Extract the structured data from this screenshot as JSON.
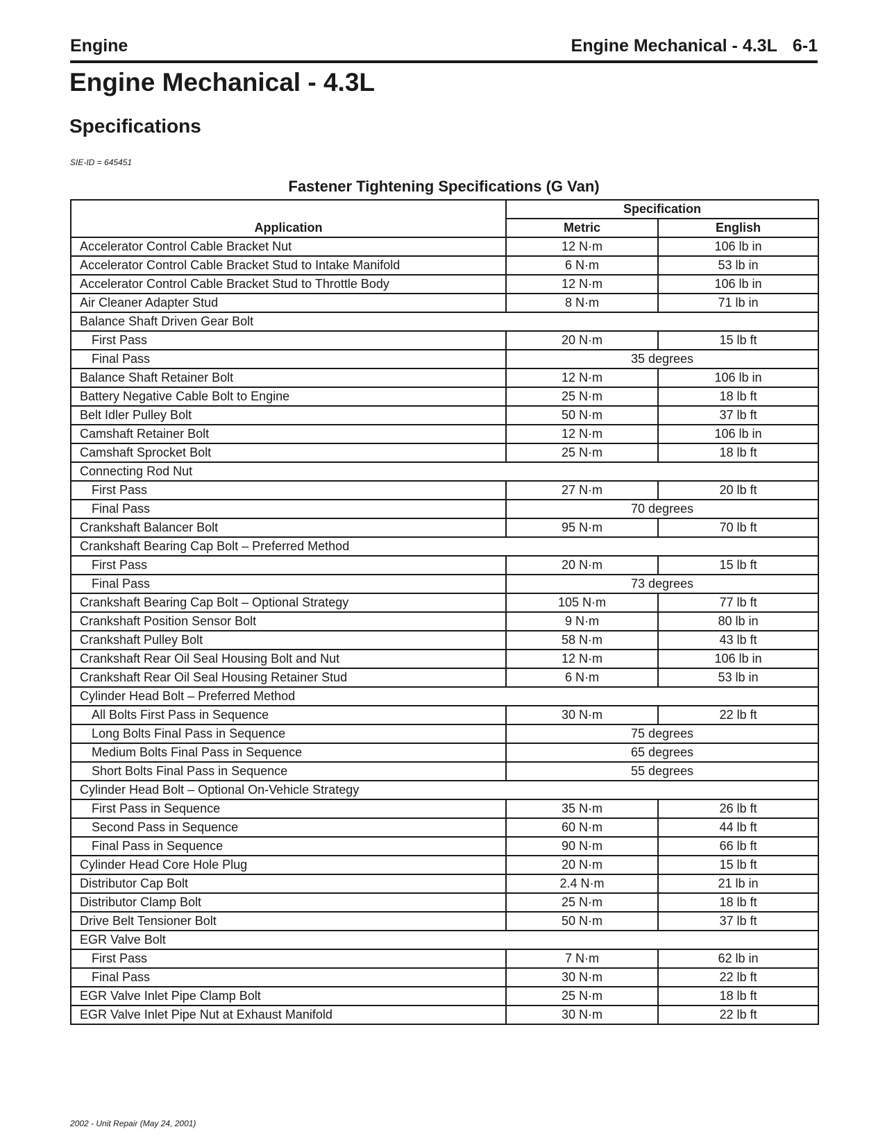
{
  "header": {
    "section": "Engine",
    "chapter": "Engine Mechanical - 4.3L",
    "page_number": "6-1"
  },
  "title": "Engine Mechanical - 4.3L",
  "subtitle": "Specifications",
  "sie_id": "SIE-ID = 645451",
  "table": {
    "caption": "Fastener Tightening Specifications (G Van)",
    "columns": {
      "application": "Application",
      "specification": "Specification",
      "metric": "Metric",
      "english": "English"
    },
    "rows": [
      {
        "application": "Accelerator Control Cable Bracket Nut",
        "metric": "12 N·m",
        "english": "106 lb in"
      },
      {
        "application": "Accelerator Control Cable Bracket Stud to Intake Manifold",
        "metric": "6 N·m",
        "english": "53 lb in"
      },
      {
        "application": "Accelerator Control Cable Bracket Stud to Throttle Body",
        "metric": "12 N·m",
        "english": "106 lb in"
      },
      {
        "application": "Air Cleaner Adapter Stud",
        "metric": "8 N·m",
        "english": "71 lb in"
      },
      {
        "application": "Balance Shaft Driven Gear Bolt",
        "group": true
      },
      {
        "application": "First Pass",
        "sub": true,
        "metric": "20 N·m",
        "english": "15 lb ft"
      },
      {
        "application": "Final Pass",
        "sub": true,
        "combined": "35 degrees"
      },
      {
        "application": "Balance Shaft Retainer Bolt",
        "metric": "12 N·m",
        "english": "106 lb in"
      },
      {
        "application": "Battery Negative Cable Bolt to Engine",
        "metric": "25 N·m",
        "english": "18 lb ft"
      },
      {
        "application": "Belt Idler Pulley Bolt",
        "metric": "50 N·m",
        "english": "37 lb ft"
      },
      {
        "application": "Camshaft Retainer Bolt",
        "metric": "12 N·m",
        "english": "106 lb in"
      },
      {
        "application": "Camshaft Sprocket Bolt",
        "metric": "25 N·m",
        "english": "18 lb ft"
      },
      {
        "application": "Connecting Rod Nut",
        "group": true
      },
      {
        "application": "First Pass",
        "sub": true,
        "metric": "27 N·m",
        "english": "20 lb ft"
      },
      {
        "application": "Final Pass",
        "sub": true,
        "combined": "70 degrees"
      },
      {
        "application": "Crankshaft Balancer Bolt",
        "metric": "95 N·m",
        "english": "70 lb ft"
      },
      {
        "application": "Crankshaft Bearing Cap Bolt – Preferred Method",
        "group": true
      },
      {
        "application": "First Pass",
        "sub": true,
        "metric": "20 N·m",
        "english": "15 lb ft"
      },
      {
        "application": "Final Pass",
        "sub": true,
        "combined": "73 degrees"
      },
      {
        "application": "Crankshaft Bearing Cap Bolt – Optional Strategy",
        "metric": "105 N·m",
        "english": "77 lb ft"
      },
      {
        "application": "Crankshaft Position Sensor Bolt",
        "metric": "9 N·m",
        "english": "80 lb in"
      },
      {
        "application": "Crankshaft Pulley Bolt",
        "metric": "58 N·m",
        "english": "43 lb ft"
      },
      {
        "application": "Crankshaft Rear Oil Seal Housing Bolt and Nut",
        "metric": "12 N·m",
        "english": "106 lb in"
      },
      {
        "application": "Crankshaft Rear Oil Seal Housing Retainer Stud",
        "metric": "6 N·m",
        "english": "53 lb in"
      },
      {
        "application": "Cylinder Head Bolt – Preferred Method",
        "group": true
      },
      {
        "application": "All Bolts First Pass in Sequence",
        "sub": true,
        "metric": "30 N·m",
        "english": "22 lb ft"
      },
      {
        "application": "Long Bolts Final Pass in Sequence",
        "sub": true,
        "combined": "75 degrees"
      },
      {
        "application": "Medium Bolts Final Pass in Sequence",
        "sub": true,
        "combined": "65 degrees"
      },
      {
        "application": "Short Bolts Final Pass in Sequence",
        "sub": true,
        "combined": "55 degrees"
      },
      {
        "application": "Cylinder Head Bolt – Optional On-Vehicle Strategy",
        "group": true
      },
      {
        "application": "First Pass in Sequence",
        "sub": true,
        "metric": "35 N·m",
        "english": "26 lb ft"
      },
      {
        "application": "Second Pass in Sequence",
        "sub": true,
        "metric": "60 N·m",
        "english": "44 lb ft"
      },
      {
        "application": "Final Pass in Sequence",
        "sub": true,
        "metric": "90 N·m",
        "english": "66 lb ft"
      },
      {
        "application": "Cylinder Head Core Hole Plug",
        "metric": "20 N·m",
        "english": "15 lb ft"
      },
      {
        "application": "Distributor Cap Bolt",
        "metric": "2.4 N·m",
        "english": "21 lb in"
      },
      {
        "application": "Distributor Clamp Bolt",
        "metric": "25 N·m",
        "english": "18 lb ft"
      },
      {
        "application": "Drive Belt Tensioner Bolt",
        "metric": "50 N·m",
        "english": "37 lb ft"
      },
      {
        "application": "EGR Valve Bolt",
        "group": true
      },
      {
        "application": "First Pass",
        "sub": true,
        "metric": "7 N·m",
        "english": "62 lb in"
      },
      {
        "application": "Final Pass",
        "sub": true,
        "metric": "30 N·m",
        "english": "22 lb ft"
      },
      {
        "application": "EGR Valve Inlet Pipe Clamp Bolt",
        "metric": "25 N·m",
        "english": "18 lb ft"
      },
      {
        "application": "EGR Valve Inlet Pipe Nut at Exhaust Manifold",
        "metric": "30 N·m",
        "english": "22 lb ft"
      }
    ]
  },
  "footer": "2002 - Unit Repair   (May  24,  2001)"
}
